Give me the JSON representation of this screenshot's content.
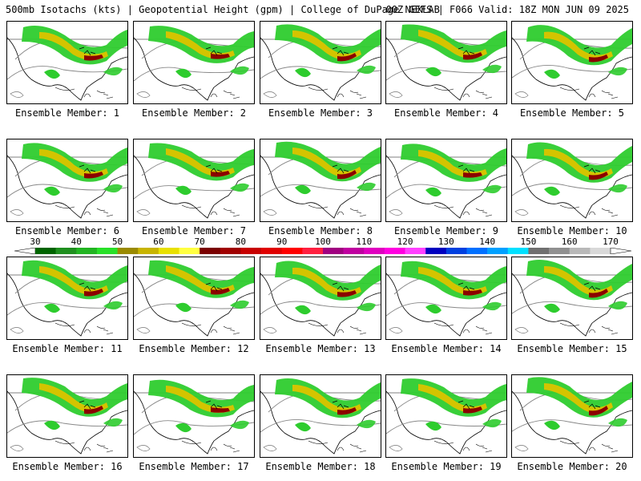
{
  "header": {
    "title_left": "500mb Isotachs (kts) | Geopotential Height (gpm) | College of DuPage NEXLAB",
    "title_right": "00Z GEFS | F066 Valid: 18Z MON JUN 09 2025"
  },
  "panels": [
    {
      "label": "Ensemble Member: 1"
    },
    {
      "label": "Ensemble Member: 2"
    },
    {
      "label": "Ensemble Member: 3"
    },
    {
      "label": "Ensemble Member: 4"
    },
    {
      "label": "Ensemble Member: 5"
    },
    {
      "label": "Ensemble Member: 6"
    },
    {
      "label": "Ensemble Member: 7"
    },
    {
      "label": "Ensemble Member: 8"
    },
    {
      "label": "Ensemble Member: 9"
    },
    {
      "label": "Ensemble Member: 10"
    },
    {
      "label": "Ensemble Member: 11"
    },
    {
      "label": "Ensemble Member: 12"
    },
    {
      "label": "Ensemble Member: 13"
    },
    {
      "label": "Ensemble Member: 14"
    },
    {
      "label": "Ensemble Member: 15"
    },
    {
      "label": "Ensemble Member: 16"
    },
    {
      "label": "Ensemble Member: 17"
    },
    {
      "label": "Ensemble Member: 18"
    },
    {
      "label": "Ensemble Member: 19"
    },
    {
      "label": "Ensemble Member: 20"
    }
  ],
  "colorbar": {
    "labels": [
      "30",
      "40",
      "50",
      "60",
      "70",
      "80",
      "90",
      "100",
      "110",
      "120",
      "130",
      "140",
      "150",
      "160",
      "170"
    ],
    "colors": [
      "#006400",
      "#1f8f1f",
      "#22b422",
      "#28e028",
      "#9a8a00",
      "#c8b400",
      "#e8e000",
      "#ffff40",
      "#7a0000",
      "#a00000",
      "#c80000",
      "#e00000",
      "#ff0000",
      "#ff2040",
      "#a00080",
      "#c000a0",
      "#e000c0",
      "#ff00e0",
      "#ff40ff",
      "#0000c0",
      "#0040e0",
      "#0070ff",
      "#00a0ff",
      "#00e0ff",
      "#707070",
      "#909090",
      "#b8b8b8",
      "#d8d8d8"
    ]
  },
  "map_colors": {
    "jet_green": "#2ecc2e",
    "jet_yellow": "#d4c400",
    "jet_red": "#8b0000",
    "height_contour": "#888888",
    "coastline": "#000000"
  }
}
